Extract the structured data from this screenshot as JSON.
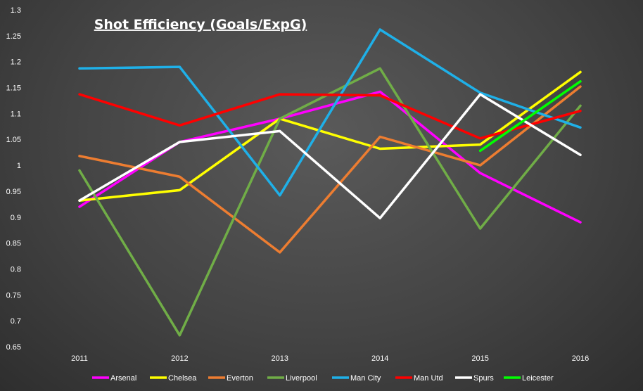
{
  "chart_data": {
    "type": "line",
    "title": "Shot Efficiency (Goals/ExpG)",
    "xlabel": "",
    "ylabel": "",
    "x": [
      "2011",
      "2012",
      "2013",
      "2014",
      "2015",
      "2016"
    ],
    "ylim": [
      0.65,
      1.3
    ],
    "yticks": [
      0.65,
      0.7,
      0.75,
      0.8,
      0.85,
      0.9,
      0.95,
      1,
      1.05,
      1.1,
      1.15,
      1.2,
      1.25,
      1.3
    ],
    "ytick_labels": [
      "0.65",
      "0.7",
      "0.75",
      "0.8",
      "0.85",
      "0.9",
      "0.95",
      "1",
      "1.05",
      "1.1",
      "1.15",
      "1.2",
      "1.25",
      "1.3"
    ],
    "grid": false,
    "legend_position": "bottom",
    "series": [
      {
        "name": "Arsenal",
        "color": "#ff00ff",
        "values": [
          0.92,
          1.045,
          1.09,
          1.142,
          0.985,
          0.89
        ]
      },
      {
        "name": "Chelsea",
        "color": "#ffff00",
        "values": [
          0.932,
          0.952,
          1.09,
          1.032,
          1.04,
          1.18
        ]
      },
      {
        "name": "Everton",
        "color": "#ed7d31",
        "values": [
          1.018,
          0.978,
          0.832,
          1.055,
          1.0,
          1.152
        ]
      },
      {
        "name": "Liverpool",
        "color": "#70ad47",
        "values": [
          0.99,
          0.672,
          1.09,
          1.187,
          0.878,
          1.115
        ]
      },
      {
        "name": "Man City",
        "color": "#1fb0e8",
        "values": [
          1.187,
          1.19,
          0.942,
          1.262,
          1.14,
          1.073
        ]
      },
      {
        "name": "Man Utd",
        "color": "#ff0000",
        "values": [
          1.137,
          1.077,
          1.137,
          1.135,
          1.052,
          1.105
        ]
      },
      {
        "name": "Spurs",
        "color": "#ffffff",
        "values": [
          0.932,
          1.045,
          1.066,
          0.898,
          1.137,
          1.02
        ]
      },
      {
        "name": "Leicester",
        "color": "#00ff00",
        "values": [
          null,
          null,
          null,
          null,
          1.028,
          1.162
        ]
      }
    ]
  }
}
